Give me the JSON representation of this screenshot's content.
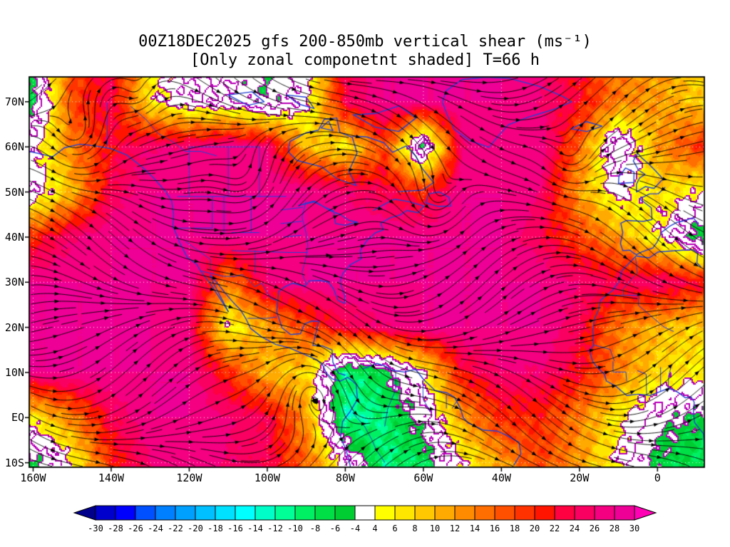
{
  "title": {
    "line1": "00Z18DEC2025 gfs 200-850mb vertical shear (ms⁻¹)",
    "line2": "[Only zonal componetnt shaded] T=66 h"
  },
  "chart_data": {
    "type": "heatmap",
    "title": "00Z18DEC2025 gfs 200-850mb vertical shear (ms⁻¹)",
    "subtitle": "[Only zonal componetnt shaded] T=66 h",
    "model": "gfs",
    "valid_time": "00Z18DEC2025",
    "forecast_hour": "T=66 h",
    "layer": "200-850mb",
    "variable": "vertical shear",
    "units": "ms⁻¹",
    "shading_note": "Only zonal componetnt shaded",
    "x_axis": {
      "ticks": [
        "160W",
        "140W",
        "120W",
        "100W",
        "80W",
        "60W",
        "40W",
        "20W",
        "0"
      ],
      "values": [
        -160,
        -140,
        -120,
        -100,
        -80,
        -60,
        -40,
        -20,
        0
      ]
    },
    "y_axis": {
      "ticks": [
        "70N",
        "60N",
        "50N",
        "40N",
        "30N",
        "20N",
        "10N",
        "EQ",
        "10S"
      ],
      "values": [
        70,
        60,
        50,
        40,
        30,
        20,
        10,
        0,
        -10
      ]
    },
    "lon_range": [
      -161,
      12
    ],
    "lat_range": [
      -11,
      75.5
    ],
    "grid": "dotted white graticule every 10 deg lat / 20 deg lon",
    "legend_position": "bottom",
    "colorbar": {
      "units": "ms⁻¹",
      "boundaries": [
        -30,
        -28,
        -26,
        -24,
        -22,
        -20,
        -18,
        -16,
        -14,
        -12,
        -10,
        -8,
        -6,
        -4,
        4,
        6,
        8,
        10,
        12,
        14,
        16,
        18,
        20,
        22,
        24,
        26,
        28,
        30
      ],
      "labels": [
        "-30",
        "-28",
        "-26",
        "-24",
        "-22",
        "-20",
        "-18",
        "-16",
        "-14",
        "-12",
        "-10",
        "-8",
        "-6",
        "-4",
        "4",
        "6",
        "8",
        "10",
        "12",
        "14",
        "16",
        "18",
        "20",
        "22",
        "24",
        "26",
        "28",
        "30"
      ],
      "colors": [
        "#00008b",
        "#0000cd",
        "#0000ff",
        "#0050ff",
        "#0080ff",
        "#00a0ff",
        "#00c0ff",
        "#00e0ff",
        "#00ffff",
        "#00ffc8",
        "#00ff96",
        "#00f064",
        "#00e046",
        "#00cd32",
        "#ffffff",
        "#ffff00",
        "#ffe600",
        "#ffc800",
        "#ffaa00",
        "#ff8c00",
        "#ff6e00",
        "#ff5000",
        "#ff3200",
        "#ff1400",
        "#ff0040",
        "#fa0060",
        "#f40080",
        "#ee0096",
        "#ff00b4"
      ]
    },
    "field_estimate": {
      "note": "approximate shaded zonal shear values (ms⁻¹) read from the map at ~10 deg spacing",
      "lons": [
        -160,
        -150,
        -140,
        -130,
        -120,
        -110,
        -100,
        -90,
        -80,
        -70,
        -60,
        -50,
        -40,
        -30,
        -20,
        -10,
        0,
        12
      ],
      "lats": [
        70,
        60,
        50,
        40,
        30,
        20,
        10,
        0,
        -10
      ],
      "values": [
        [
          -6,
          18,
          24,
          6,
          0,
          0,
          -4,
          2,
          24,
          28,
          28,
          28,
          28,
          26,
          22,
          14,
          12,
          8
        ],
        [
          2,
          14,
          22,
          26,
          26,
          28,
          26,
          10,
          6,
          18,
          -6,
          26,
          28,
          28,
          16,
          -4,
          12,
          20
        ],
        [
          0,
          10,
          24,
          28,
          28,
          28,
          28,
          28,
          26,
          24,
          20,
          28,
          28,
          26,
          12,
          2,
          8,
          4
        ],
        [
          20,
          26,
          28,
          28,
          28,
          28,
          28,
          28,
          28,
          28,
          28,
          28,
          28,
          24,
          18,
          12,
          4,
          -8
        ],
        [
          28,
          28,
          28,
          28,
          28,
          14,
          26,
          28,
          28,
          28,
          28,
          28,
          28,
          28,
          26,
          24,
          26,
          22
        ],
        [
          28,
          28,
          28,
          28,
          26,
          4,
          12,
          18,
          24,
          26,
          28,
          28,
          28,
          28,
          24,
          14,
          10,
          8
        ],
        [
          28,
          28,
          28,
          28,
          28,
          20,
          10,
          8,
          -10,
          -6,
          4,
          22,
          26,
          26,
          22,
          14,
          8,
          6
        ],
        [
          6,
          14,
          24,
          28,
          28,
          26,
          24,
          12,
          -12,
          -10,
          -2,
          12,
          20,
          20,
          14,
          6,
          -2,
          -6
        ],
        [
          -6,
          4,
          20,
          26,
          28,
          26,
          24,
          16,
          2,
          -10,
          -8,
          4,
          12,
          18,
          12,
          4,
          -6,
          -8
        ]
      ]
    },
    "overlays": [
      "black streamlines with arrowheads (wind shear vector direction)",
      "blue coastlines, lakes and political borders",
      "thin purple contour lines around weak-shear regions",
      "white dotted graticule"
    ]
  },
  "style": {
    "coast": "#2442d4",
    "stream": "#000000",
    "contour_purple": "#b800b8",
    "grid_dot": "#ffffff",
    "frame": "#000000",
    "background": "#ffffff"
  }
}
